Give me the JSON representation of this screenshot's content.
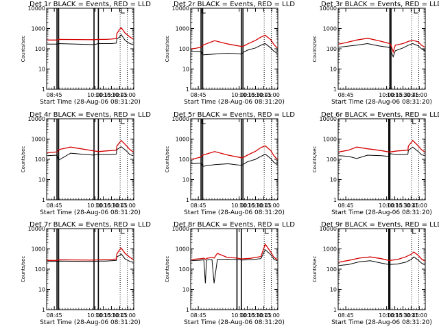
{
  "colors": {
    "events": "#000000",
    "lld": "#d40000",
    "axis": "#000000",
    "background": "#ffffff"
  },
  "figure": {
    "rows": 3,
    "cols": 3
  },
  "chart_data": [
    {
      "type": "line",
      "title": "Det 1r  BLACK = Events, RED = LLD",
      "xlabel": "Start Time (28-Aug-06 08:31:20)",
      "ylabel": "Counts/sec",
      "xlim": [
        "08:31",
        "11:11"
      ],
      "ylim": [
        1,
        10000
      ],
      "y_scale": "log",
      "x_ticks": [
        "08:45",
        "10:00",
        "10:15",
        "10:30",
        "10:45",
        "11:00"
      ],
      "y_ticks": [
        "1",
        "10",
        "100",
        "1000",
        "10000"
      ],
      "dotted_vlines": [
        "10:46",
        "10:59"
      ],
      "marker_top": "10:48",
      "gaps": [
        {
          "start": "08:50",
          "end": "08:53"
        },
        {
          "start": "09:58",
          "end": "10:06"
        }
      ],
      "series": [
        {
          "name": "BLACK = Events",
          "x": [
            "08:32",
            "08:50",
            "08:53",
            "09:58",
            "10:06",
            "10:20",
            "10:30",
            "10:39",
            "10:40",
            "10:45",
            "10:48",
            "10:55",
            "11:04",
            "11:10"
          ],
          "values": [
            170,
            170,
            180,
            160,
            180,
            180,
            180,
            190,
            300,
            380,
            500,
            260,
            180,
            160
          ]
        },
        {
          "name": "RED = LLD",
          "x": [
            "08:32",
            "08:50",
            "08:53",
            "09:58",
            "10:06",
            "10:20",
            "10:30",
            "10:39",
            "10:40",
            "10:45",
            "10:48",
            "10:55",
            "11:04",
            "11:10"
          ],
          "values": [
            270,
            270,
            290,
            280,
            290,
            290,
            300,
            320,
            560,
            900,
            1100,
            600,
            380,
            300
          ]
        }
      ]
    },
    {
      "type": "line",
      "title": "Det 2r  BLACK = Events, RED = LLD",
      "xlabel": "Start Time (28-Aug-06 08:31:20)",
      "ylabel": "Counts/sec",
      "xlim": [
        "08:31",
        "11:11"
      ],
      "ylim": [
        1,
        10000
      ],
      "y_scale": "log",
      "x_ticks": [
        "08:45",
        "10:00",
        "10:15",
        "10:30",
        "10:45",
        "11:00"
      ],
      "y_ticks": [
        "1",
        "10",
        "100",
        "1000",
        "10000"
      ],
      "dotted_vlines": [
        "10:46",
        "10:59"
      ],
      "marker_top": "08:52",
      "gaps": [
        {
          "start": "08:50",
          "end": "08:53"
        },
        {
          "start": "10:04",
          "end": "10:07"
        }
      ],
      "series": [
        {
          "name": "BLACK = Events",
          "x": [
            "08:32",
            "08:40",
            "08:50",
            "08:53",
            "09:15",
            "09:40",
            "10:04",
            "10:07",
            "10:15",
            "10:30",
            "10:40",
            "10:48",
            "10:58",
            "11:04",
            "11:10"
          ],
          "values": [
            70,
            72,
            75,
            50,
            55,
            60,
            55,
            65,
            85,
            110,
            150,
            180,
            110,
            75,
            60
          ]
        },
        {
          "name": "RED = LLD",
          "x": [
            "08:32",
            "08:40",
            "08:50",
            "08:53",
            "09:15",
            "09:40",
            "10:04",
            "10:07",
            "10:15",
            "10:30",
            "10:40",
            "10:48",
            "10:58",
            "11:04",
            "11:10"
          ],
          "values": [
            100,
            105,
            120,
            150,
            250,
            170,
            130,
            130,
            170,
            260,
            380,
            460,
            280,
            160,
            110
          ]
        }
      ]
    },
    {
      "type": "line",
      "title": "Det 3r  BLACK = Events, RED = LLD",
      "xlabel": "Start Time (28-Aug-06 08:31:20)",
      "ylabel": "Counts/sec",
      "xlim": [
        "08:31",
        "11:11"
      ],
      "ylim": [
        1,
        10000
      ],
      "y_scale": "log",
      "x_ticks": [
        "08:45",
        "10:00",
        "10:15",
        "10:30",
        "10:45",
        "11:00"
      ],
      "y_ticks": [
        "1",
        "10",
        "100",
        "1000",
        "10000"
      ],
      "dotted_vlines": [
        "10:46",
        "10:59"
      ],
      "marker_top": "10:51",
      "gaps": [
        {
          "start": "10:06",
          "end": "10:08"
        }
      ],
      "series": [
        {
          "name": "BLACK = Events",
          "x": [
            "08:32",
            "08:45",
            "09:05",
            "09:25",
            "09:45",
            "10:06",
            "10:08",
            "10:12",
            "10:16",
            "10:30",
            "10:40",
            "10:48",
            "10:58",
            "11:04",
            "11:10"
          ],
          "values": [
            120,
            130,
            150,
            180,
            140,
            115,
            75,
            40,
            80,
            110,
            150,
            180,
            140,
            100,
            80
          ]
        },
        {
          "name": "RED = LLD",
          "x": [
            "08:32",
            "08:45",
            "09:05",
            "09:25",
            "09:45",
            "10:06",
            "10:08",
            "10:12",
            "10:16",
            "10:30",
            "10:40",
            "10:48",
            "10:58",
            "11:04",
            "11:10"
          ],
          "values": [
            170,
            200,
            270,
            330,
            250,
            180,
            150,
            70,
            150,
            180,
            230,
            260,
            220,
            150,
            120
          ]
        }
      ]
    },
    {
      "type": "line",
      "title": "Det 4r  BLACK = Events, RED = LLD",
      "xlabel": "Start Time (28-Aug-06 08:31:20)",
      "ylabel": "Counts/sec",
      "xlim": [
        "08:31",
        "11:11"
      ],
      "ylim": [
        1,
        10000
      ],
      "y_scale": "log",
      "x_ticks": [
        "08:45",
        "10:00",
        "10:15",
        "10:30",
        "10:45",
        "11:00"
      ],
      "y_ticks": [
        "1",
        "10",
        "100",
        "1000",
        "10000"
      ],
      "dotted_vlines": [
        "10:46",
        "10:59"
      ],
      "marker_top": "10:48",
      "gaps": [
        {
          "start": "08:50",
          "end": "08:53"
        },
        {
          "start": "09:58",
          "end": "10:06"
        }
      ],
      "series": [
        {
          "name": "BLACK = Events",
          "x": [
            "08:32",
            "08:50",
            "08:53",
            "09:15",
            "09:58",
            "10:06",
            "10:20",
            "10:39",
            "10:40",
            "10:48",
            "10:58",
            "11:04",
            "11:10"
          ],
          "values": [
            150,
            160,
            90,
            200,
            160,
            180,
            170,
            180,
            300,
            420,
            250,
            170,
            150
          ]
        },
        {
          "name": "RED = LLD",
          "x": [
            "08:32",
            "08:50",
            "08:53",
            "09:15",
            "09:58",
            "10:06",
            "10:20",
            "10:39",
            "10:40",
            "10:48",
            "10:58",
            "11:04",
            "11:10"
          ],
          "values": [
            210,
            230,
            300,
            400,
            260,
            240,
            260,
            280,
            450,
            850,
            450,
            300,
            230
          ]
        }
      ]
    },
    {
      "type": "line",
      "title": "Det 5r  BLACK = Events, RED = LLD",
      "xlabel": "Start Time (28-Aug-06 08:31:20)",
      "ylabel": "Counts/sec",
      "xlim": [
        "08:31",
        "11:11"
      ],
      "ylim": [
        1,
        10000
      ],
      "y_scale": "log",
      "x_ticks": [
        "08:45",
        "10:00",
        "10:15",
        "10:30",
        "10:45",
        "11:00"
      ],
      "y_ticks": [
        "1",
        "10",
        "100",
        "1000",
        "10000"
      ],
      "dotted_vlines": [
        "10:46",
        "10:59"
      ],
      "marker_top": "08:52",
      "gaps": [
        {
          "start": "08:50",
          "end": "08:53"
        },
        {
          "start": "10:04",
          "end": "10:07"
        }
      ],
      "series": [
        {
          "name": "BLACK = Events",
          "x": [
            "08:32",
            "08:40",
            "08:50",
            "08:53",
            "09:15",
            "09:40",
            "10:04",
            "10:07",
            "10:15",
            "10:30",
            "10:40",
            "10:48",
            "10:58",
            "11:04",
            "11:10"
          ],
          "values": [
            60,
            62,
            65,
            45,
            55,
            60,
            50,
            55,
            75,
            100,
            140,
            180,
            110,
            70,
            55
          ]
        },
        {
          "name": "RED = LLD",
          "x": [
            "08:32",
            "08:40",
            "08:50",
            "08:53",
            "09:15",
            "09:40",
            "10:04",
            "10:07",
            "10:15",
            "10:30",
            "10:40",
            "10:48",
            "10:58",
            "11:04",
            "11:10"
          ],
          "values": [
            100,
            110,
            130,
            160,
            240,
            160,
            120,
            120,
            160,
            250,
            380,
            460,
            270,
            150,
            100
          ]
        }
      ]
    },
    {
      "type": "line",
      "title": "Det 6r  BLACK = Events, RED = LLD",
      "xlabel": "Start Time (28-Aug-06 08:31:20)",
      "ylabel": "Counts/sec",
      "xlim": [
        "08:31",
        "11:11"
      ],
      "ylim": [
        1,
        10000
      ],
      "y_scale": "log",
      "x_ticks": [
        "08:45",
        "10:00",
        "10:15",
        "10:30",
        "10:45",
        "11:00"
      ],
      "y_ticks": [
        "1",
        "10",
        "100",
        "1000",
        "10000"
      ],
      "dotted_vlines": [
        "10:46",
        "10:59"
      ],
      "marker_top": "10:48",
      "gaps": [
        {
          "start": "10:04",
          "end": "10:06"
        }
      ],
      "series": [
        {
          "name": "BLACK = Events",
          "x": [
            "08:32",
            "08:50",
            "09:05",
            "09:25",
            "09:50",
            "10:04",
            "10:06",
            "10:20",
            "10:39",
            "10:40",
            "10:48",
            "10:58",
            "11:04",
            "11:10"
          ],
          "values": [
            150,
            140,
            110,
            160,
            150,
            140,
            190,
            170,
            175,
            280,
            400,
            240,
            170,
            150
          ]
        },
        {
          "name": "RED = LLD",
          "x": [
            "08:32",
            "08:50",
            "09:05",
            "09:25",
            "09:50",
            "10:04",
            "10:06",
            "10:20",
            "10:39",
            "10:40",
            "10:48",
            "10:58",
            "11:04",
            "11:10"
          ],
          "values": [
            230,
            280,
            400,
            330,
            270,
            230,
            230,
            260,
            280,
            450,
            850,
            460,
            300,
            230
          ]
        }
      ]
    },
    {
      "type": "line",
      "title": "Det 7r  BLACK = Events, RED = LLD",
      "xlabel": "Start Time (28-Aug-06 08:31:20)",
      "ylabel": "Counts/sec",
      "xlim": [
        "08:31",
        "11:11"
      ],
      "ylim": [
        1,
        10000
      ],
      "y_scale": "log",
      "x_ticks": [
        "08:45",
        "10:00",
        "10:15",
        "10:30",
        "10:45",
        "11:00"
      ],
      "y_ticks": [
        "1",
        "10",
        "100",
        "1000",
        "10000"
      ],
      "dotted_vlines": [
        "10:46",
        "10:59"
      ],
      "marker_top": "10:48",
      "gaps": [
        {
          "start": "08:50",
          "end": "08:53"
        },
        {
          "start": "09:58",
          "end": "10:06"
        }
      ],
      "series": [
        {
          "name": "BLACK = Events",
          "x": [
            "08:32",
            "08:50",
            "08:53",
            "09:58",
            "10:06",
            "10:20",
            "10:30",
            "10:39",
            "10:40",
            "10:45",
            "10:48",
            "10:55",
            "11:04",
            "11:10"
          ],
          "values": [
            240,
            240,
            250,
            240,
            250,
            250,
            260,
            270,
            400,
            480,
            560,
            320,
            240,
            220
          ]
        },
        {
          "name": "RED = LLD",
          "x": [
            "08:32",
            "08:50",
            "08:53",
            "09:58",
            "10:06",
            "10:20",
            "10:30",
            "10:39",
            "10:40",
            "10:45",
            "10:48",
            "10:55",
            "11:04",
            "11:10"
          ],
          "values": [
            270,
            270,
            290,
            280,
            290,
            290,
            300,
            320,
            560,
            900,
            1100,
            600,
            380,
            300
          ]
        }
      ]
    },
    {
      "type": "line",
      "title": "Det 8r  BLACK = Events, RED = LLD",
      "xlabel": "Start Time (28-Aug-06 08:31:20)",
      "ylabel": "Counts/sec",
      "xlim": [
        "08:31",
        "11:11"
      ],
      "ylim": [
        1,
        10000
      ],
      "y_scale": "log",
      "x_ticks": [
        "08:45",
        "10:00",
        "10:15",
        "10:30",
        "10:45",
        "11:00"
      ],
      "y_ticks": [
        "1",
        "10",
        "100",
        "1000",
        "10000"
      ],
      "dotted_vlines": [
        "10:46",
        "10:59"
      ],
      "marker_top": "10:48",
      "gaps": [
        {
          "start": "09:56",
          "end": "10:04"
        }
      ],
      "series": [
        {
          "name": "BLACK = Events",
          "x": [
            "08:32",
            "08:52",
            "08:55",
            "08:58",
            "09:00",
            "09:10",
            "09:14",
            "09:20",
            "09:38",
            "09:56",
            "10:04",
            "10:20",
            "10:40",
            "10:48",
            "10:58",
            "11:04",
            "11:10"
          ],
          "values": [
            260,
            280,
            300,
            20,
            280,
            300,
            20,
            300,
            310,
            300,
            280,
            290,
            330,
            900,
            520,
            300,
            260
          ]
        },
        {
          "name": "RED = LLD",
          "x": [
            "08:32",
            "08:52",
            "08:55",
            "08:58",
            "09:00",
            "09:10",
            "09:14",
            "09:20",
            "09:38",
            "09:56",
            "10:04",
            "10:20",
            "10:40",
            "10:48",
            "10:58",
            "11:04",
            "11:10"
          ],
          "values": [
            300,
            330,
            350,
            300,
            340,
            380,
            350,
            600,
            380,
            350,
            320,
            340,
            420,
            1700,
            700,
            380,
            300
          ]
        }
      ]
    },
    {
      "type": "line",
      "title": "Det 9r  BLACK = Events, RED = LLD",
      "xlabel": "Start Time (28-Aug-06 08:31:20)",
      "ylabel": "Counts/sec",
      "xlim": [
        "08:31",
        "11:11"
      ],
      "ylim": [
        1,
        10000
      ],
      "y_scale": "log",
      "x_ticks": [
        "08:45",
        "10:00",
        "10:15",
        "10:30",
        "10:45",
        "11:00"
      ],
      "y_ticks": [
        "1",
        "10",
        "100",
        "1000",
        "10000"
      ],
      "dotted_vlines": [
        "10:46",
        "10:59"
      ],
      "marker_top": "10:48",
      "gaps": [
        {
          "start": "10:04",
          "end": "10:06"
        }
      ],
      "series": [
        {
          "name": "BLACK = Events",
          "x": [
            "08:32",
            "08:50",
            "09:10",
            "09:30",
            "09:50",
            "10:04",
            "10:06",
            "10:20",
            "10:35",
            "10:45",
            "10:50",
            "10:58",
            "11:04",
            "11:10"
          ],
          "values": [
            150,
            170,
            230,
            260,
            200,
            170,
            170,
            180,
            220,
            300,
            400,
            280,
            200,
            160
          ]
        },
        {
          "name": "RED = LLD",
          "x": [
            "08:32",
            "08:50",
            "09:10",
            "09:30",
            "09:50",
            "10:04",
            "10:06",
            "10:20",
            "10:35",
            "10:45",
            "10:50",
            "10:58",
            "11:04",
            "11:10"
          ],
          "values": [
            220,
            270,
            350,
            400,
            330,
            270,
            270,
            300,
            400,
            550,
            700,
            480,
            320,
            250
          ]
        }
      ]
    }
  ]
}
